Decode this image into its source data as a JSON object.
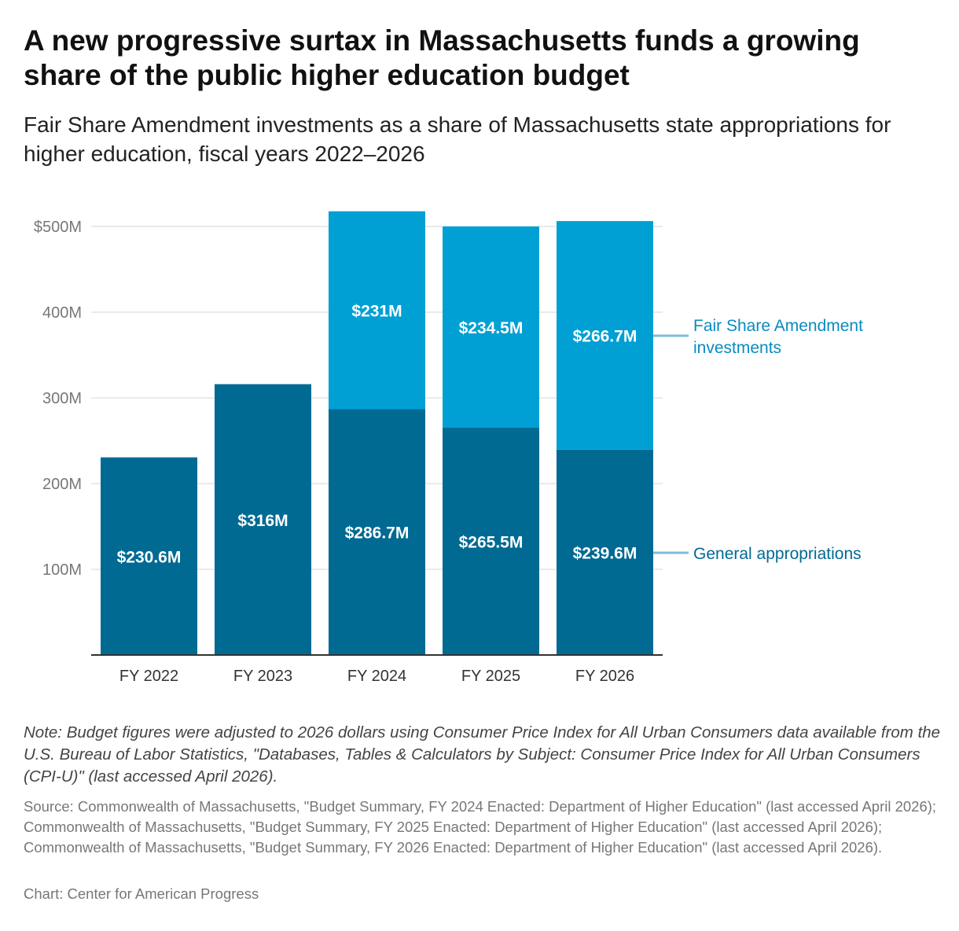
{
  "title": "A new progressive surtax in Massachusetts funds a growing share of the public higher education budget",
  "subtitle": "Fair Share Amendment investments as a share of Massachusetts state appropriations for higher education, fiscal years 2022–2026",
  "note": "Note: Budget figures were adjusted to 2026 dollars using Consumer Price Index for All Urban Consumers data available from the U.S. Bureau of Labor Statistics, \"Databases, Tables & Calculators by Subject: Consumer Price Index for All Urban Consumers (CPI-U)\" (last accessed April 2026).",
  "source": "Source: Commonwealth of Massachusetts, \"Budget Summary, FY 2024 Enacted: Department of Higher Education\" (last accessed April 2026); Commonwealth of Massachusetts, \"Budget Summary, FY 2025 Enacted: Department of Higher Education\" (last accessed April 2026); Commonwealth of Massachusetts, \"Budget Summary, FY 2026 Enacted: Department of Higher Education\" (last accessed April 2026).",
  "credit": "Chart: Center for American Progress",
  "chart_data": {
    "type": "bar",
    "stacked": true,
    "categories": [
      "FY 2022",
      "FY 2023",
      "FY 2024",
      "FY 2025",
      "FY 2026"
    ],
    "series": [
      {
        "name": "General appropriations",
        "color": "#006a93",
        "text_color": "#006a94",
        "values": [
          230.6,
          316,
          286.7,
          265.5,
          239.6
        ],
        "labels": [
          "$230.6M",
          "$316M",
          "$286.7M",
          "$265.5M",
          "$239.6M"
        ]
      },
      {
        "name": "Fair Share Amendment investments",
        "color": "#00a0d4",
        "text_color": "#0a8bc0",
        "values": [
          0,
          0,
          231,
          234.5,
          266.7
        ],
        "labels": [
          "",
          "",
          "$231M",
          "$234.5M",
          "$266.7M"
        ]
      }
    ],
    "yticks": [
      100,
      200,
      300,
      400,
      500
    ],
    "ytick_labels": [
      "100M",
      "200M",
      "300M",
      "400M",
      "$500M"
    ],
    "ylim": [
      0,
      500
    ],
    "grid": true,
    "legend": "right, direct labels"
  }
}
